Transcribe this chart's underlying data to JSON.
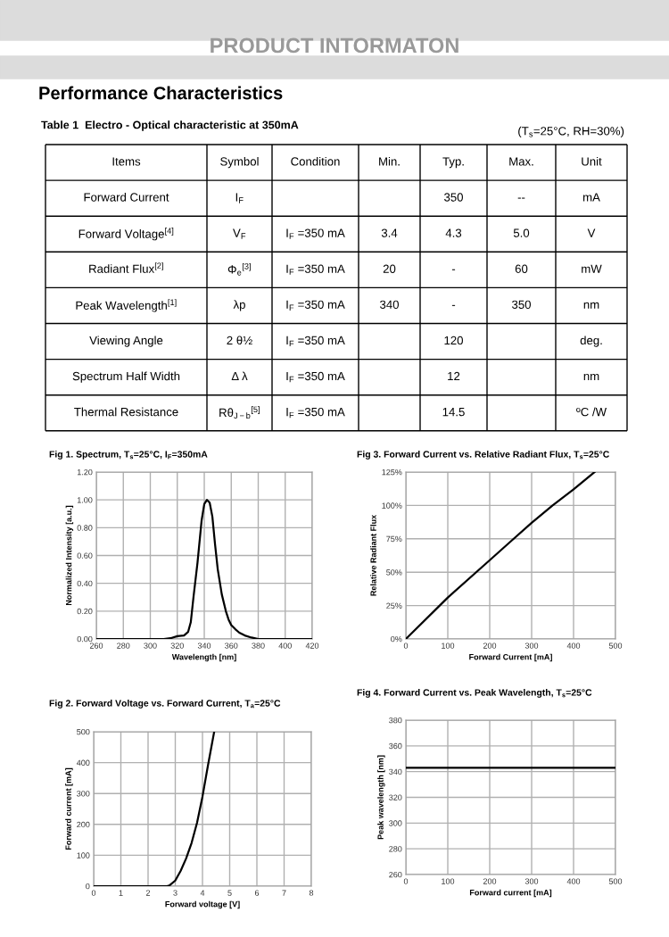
{
  "chart_data": [
    {
      "type": "other",
      "title": "PRODUCT INTORMATON",
      "subtitle": "Performance Characteristics",
      "annotations": [
        "Table 1  Electro - Optical characteristic at 350mA",
        "(T$_{s}$=25°C, RH=30%)",
        "Items",
        "Symbol",
        "Condition",
        "Min.",
        "Typ.",
        "Max.",
        "Unit",
        "Forward Current",
        "I$_{F}$",
        null,
        null,
        "350",
        "--",
        "mA",
        "Forward Voltage$^{[4]}$",
        "V$_{F}$",
        "I$_{F}$ =350 mA",
        "3.4",
        "4.3",
        "5.0",
        "V",
        "Radiant Flux$^{[2]}$",
        "Φ$_{e}$$^{[3]}$",
        "I$_{F}$ =350 mA",
        "20",
        "-",
        "60",
        "mW",
        "Peak Wavelength$^{[1]}$",
        "λp",
        "I$_{F}$ =350 mA",
        "340",
        "-",
        "350",
        "nm",
        "Viewing Angle",
        "2 θ½",
        "I$_{F}$ =350 mA",
        null,
        "120",
        null,
        "deg.",
        "Spectrum Half Width",
        "Δ λ",
        "I$_{F}$ =350 mA",
        null,
        "12",
        null,
        "nm",
        "Thermal Resistance",
        "Rθ$_{J−b}$$^{[5]}$",
        "I$_{F}$ =350 mA",
        null,
        "14.5",
        null,
        "ºC /W"
      ]
    },
    {
      "type": "line",
      "title": "Fig 1. Spectrum, T$_{s}$=25°C, I$_{F}$=350mA",
      "xlabel": "Wavelength [nm]",
      "ylabel": "Normalized Intensity [a.u.]",
      "x": [
        260,
        300,
        310,
        315,
        320,
        325,
        328,
        330,
        332,
        335,
        338,
        340,
        342,
        344,
        346,
        348,
        350,
        353,
        356,
        358,
        360,
        363,
        366,
        370,
        375,
        380,
        420
      ],
      "series": [
        {
          "color": "#000000",
          "values": [
            0,
            0,
            0,
            0.005,
            0.02,
            0.025,
            0.05,
            0.12,
            0.3,
            0.55,
            0.85,
            0.97,
            1.0,
            0.98,
            0.88,
            0.68,
            0.5,
            0.32,
            0.2,
            0.14,
            0.1,
            0.07,
            0.045,
            0.025,
            0.01,
            0,
            0
          ]
        }
      ],
      "xlim": [
        260,
        420
      ],
      "xticks": [
        260,
        280,
        300,
        320,
        340,
        360,
        380,
        400,
        420
      ],
      "ylim": [
        0,
        1.2
      ],
      "yticks": [
        {
          "value": 0,
          "label": "0.00"
        },
        {
          "value": 0.2,
          "label": "0.20"
        },
        {
          "value": 0.4,
          "label": "0.40"
        },
        {
          "value": 0.6,
          "label": "0.60"
        },
        {
          "value": 0.8,
          "label": "0.80"
        },
        {
          "value": 1.0,
          "label": "1.00"
        },
        {
          "value": 1.2,
          "label": "1.20"
        }
      ],
      "grid": true,
      "marker": "none",
      "line_style": "solid"
    },
    {
      "type": "line",
      "title": "Fig 3. Forward Current vs. Relative Radiant Flux, T$_{s}$=25°C",
      "xlabel": "Forward Current [mA]",
      "ylabel": "Relative Radiant Flux",
      "x": [
        0,
        100,
        200,
        250,
        300,
        350,
        400,
        450
      ],
      "series": [
        {
          "color": "#000000",
          "values": [
            0,
            31,
            59,
            73,
            87,
            100,
            112,
            125
          ]
        }
      ],
      "xlim": [
        0,
        500
      ],
      "xticks": [
        0,
        100,
        200,
        300,
        400,
        500
      ],
      "ylim": [
        0,
        125
      ],
      "yticks": [
        {
          "value": 0,
          "label": "0%"
        },
        {
          "value": 25,
          "label": "25%"
        },
        {
          "value": 50,
          "label": "50%"
        },
        {
          "value": 75,
          "label": "75%"
        },
        {
          "value": 100,
          "label": "100%"
        },
        {
          "value": 125,
          "label": "125%"
        }
      ],
      "grid": true,
      "marker": "none",
      "line_style": "solid"
    },
    {
      "type": "line",
      "title": "Fig 2. Forward Voltage vs. Forward Current, T$_{a}$=25°C",
      "xlabel": "Forward voltage [V]",
      "ylabel": "Forward current [mA]",
      "x": [
        0,
        2.7,
        2.8,
        3.0,
        3.2,
        3.4,
        3.6,
        3.8,
        4.0,
        4.2,
        4.43
      ],
      "series": [
        {
          "color": "#000000",
          "values": [
            0,
            0,
            3,
            18,
            50,
            90,
            140,
            205,
            290,
            390,
            500
          ]
        }
      ],
      "xlim": [
        0,
        8
      ],
      "xticks": [
        0,
        1,
        2,
        3,
        4,
        5,
        6,
        7,
        8
      ],
      "ylim": [
        0,
        500
      ],
      "yticks": [
        0,
        100,
        200,
        300,
        400,
        500
      ],
      "grid": true,
      "marker": "none",
      "line_style": "solid"
    },
    {
      "type": "line",
      "title": "Fig 4. Forward Current vs. Peak Wavelength, T$_{s}$=25°C",
      "xlabel": "Forward current [mA]",
      "ylabel": "Peak wavelength [nm]",
      "x": [
        0,
        500
      ],
      "series": [
        {
          "color": "#000000",
          "values": [
            343,
            343
          ]
        }
      ],
      "xlim": [
        0,
        500
      ],
      "xticks": [
        0,
        100,
        200,
        300,
        400,
        500
      ],
      "ylim": [
        260,
        380
      ],
      "yticks": [
        260,
        280,
        300,
        320,
        340,
        360,
        380
      ],
      "grid": true,
      "marker": "none",
      "line_style": "solid"
    }
  ]
}
